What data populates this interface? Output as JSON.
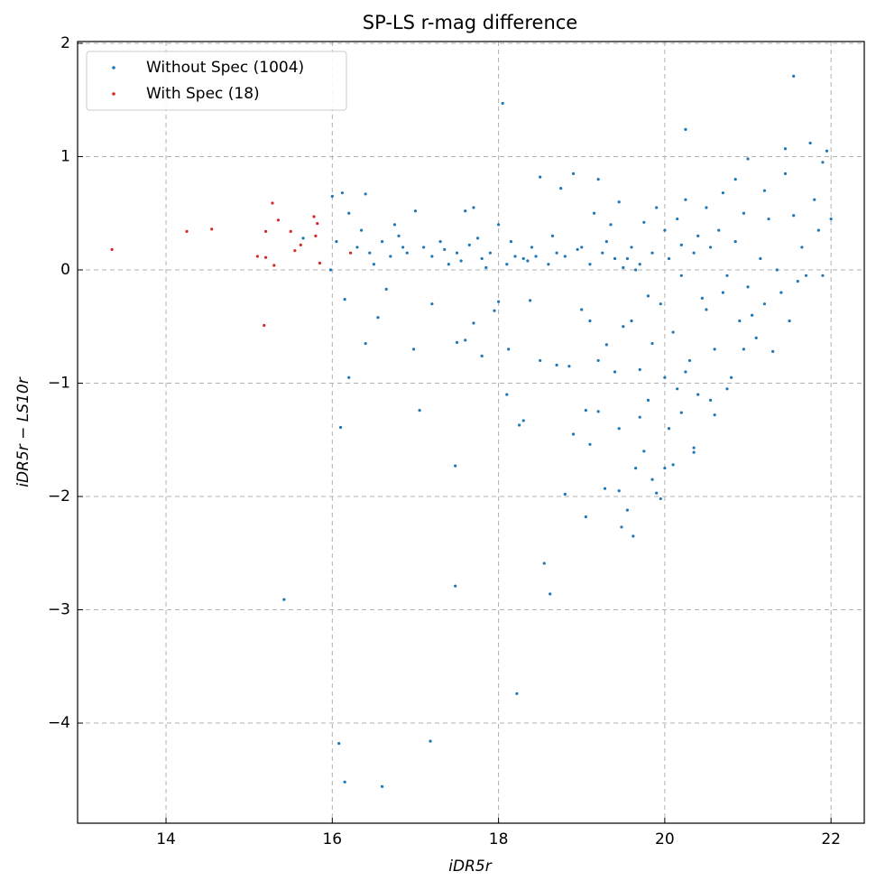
{
  "chart_data": {
    "type": "scatter",
    "title": "SP-LS r-mag difference",
    "x_label": "iDR5r",
    "y_label": "iDR5r − LS10r",
    "xlim": [
      12.936,
      22.4
    ],
    "ylim": [
      -4.884,
      2.016
    ],
    "xticks": [
      14,
      16,
      18,
      20,
      22
    ],
    "yticks": [
      {
        "value": -4,
        "label": "−4"
      },
      {
        "value": -3,
        "label": "−3"
      },
      {
        "value": -2,
        "label": "−2"
      },
      {
        "value": -1,
        "label": "−1"
      },
      0,
      1,
      2
    ],
    "grid": true,
    "legend": "upper left",
    "series": [
      {
        "name": "Without Spec (1004)",
        "color": "#1f77b4",
        "x": [
          18.05,
          20.25,
          21.55,
          15.42,
          16.08,
          16.15,
          16.6,
          17.18,
          18.22,
          17.48,
          18.55,
          18.62,
          17.48,
          16.1,
          17.05,
          18.8,
          19.05,
          19.48,
          19.55,
          19.62,
          19.28,
          19.45,
          19.05,
          18.9,
          19.1,
          19.85,
          19.95,
          19.75,
          20.1,
          19.9,
          19.65,
          20.35,
          20.35,
          20.6,
          20.2,
          20.0,
          18.3,
          18.25,
          18.1,
          16.2,
          16.4,
          16.55,
          16.15,
          16.65,
          16.98,
          17.2,
          17.5,
          17.6,
          17.7,
          17.8,
          17.95,
          18.0,
          18.12,
          18.38,
          18.5,
          18.7,
          18.85,
          19.0,
          19.1,
          19.2,
          19.3,
          19.4,
          19.5,
          19.6,
          19.7,
          19.8,
          19.85,
          19.95,
          20.0,
          20.1,
          20.2,
          20.3,
          20.4,
          20.5,
          20.6,
          20.7,
          20.8,
          20.9,
          21.0,
          21.1,
          21.2,
          21.3,
          21.4,
          21.5,
          21.6,
          21.7,
          21.9,
          22.0,
          21.95,
          21.75,
          21.45,
          21.2,
          21.0,
          20.85,
          20.7,
          20.5,
          20.4,
          20.2,
          20.0,
          19.85,
          19.7,
          19.6,
          19.5,
          19.4,
          19.3,
          19.2,
          19.1,
          19.0,
          18.9,
          18.8,
          18.7,
          18.6,
          18.5,
          18.4,
          18.3,
          18.2,
          18.1,
          18.0,
          17.9,
          17.8,
          17.7,
          17.6,
          17.5,
          17.4,
          17.3,
          17.2,
          17.1,
          17.0,
          16.9,
          16.8,
          16.7,
          16.6,
          16.5,
          16.4,
          16.3,
          16.2,
          16.12,
          16.0,
          16.05,
          15.98,
          15.65,
          16.35,
          16.45,
          16.75,
          16.85,
          17.35,
          17.55,
          17.65,
          17.75,
          17.85,
          18.15,
          18.35,
          18.45,
          18.65,
          18.75,
          18.95,
          19.15,
          19.25,
          19.35,
          19.45,
          19.55,
          19.65,
          19.75,
          19.9,
          20.05,
          20.15,
          20.25,
          20.35,
          20.45,
          20.55,
          20.65,
          20.75,
          20.85,
          20.95,
          21.05,
          21.15,
          21.25,
          21.35,
          21.45,
          21.55,
          21.65,
          21.8,
          21.85,
          21.9,
          19.8,
          20.05,
          20.15,
          20.25,
          20.55,
          20.75,
          20.95,
          19.45,
          19.7,
          19.2
        ],
        "y": [
          1.47,
          1.24,
          1.71,
          -2.91,
          -4.18,
          -4.52,
          -4.56,
          -4.16,
          -3.74,
          -2.79,
          -2.59,
          -2.86,
          -1.73,
          -1.39,
          -1.24,
          -1.98,
          -2.18,
          -2.27,
          -2.12,
          -2.35,
          -1.93,
          -1.95,
          -1.24,
          -1.45,
          -1.54,
          -1.85,
          -2.02,
          -1.6,
          -1.72,
          -1.97,
          -1.75,
          -1.57,
          -1.61,
          -1.28,
          -1.26,
          -1.75,
          -1.33,
          -1.37,
          -1.1,
          -0.95,
          -0.65,
          -0.42,
          -0.26,
          -0.17,
          -0.7,
          -0.3,
          -0.64,
          -0.62,
          -0.47,
          -0.76,
          -0.36,
          -0.28,
          -0.7,
          -0.27,
          -0.8,
          -0.84,
          -0.85,
          -0.35,
          -0.45,
          -0.8,
          -0.66,
          -0.9,
          -0.5,
          -0.45,
          -0.88,
          -0.23,
          -0.65,
          -0.3,
          -0.95,
          -0.55,
          -0.05,
          -0.8,
          -1.1,
          -0.35,
          -0.7,
          -0.2,
          -0.95,
          -0.45,
          -0.15,
          -0.6,
          -0.3,
          -0.72,
          -0.2,
          -0.45,
          -0.1,
          -0.05,
          -0.05,
          0.45,
          1.05,
          1.12,
          1.07,
          0.7,
          0.98,
          0.8,
          0.68,
          0.55,
          0.3,
          0.22,
          0.35,
          0.15,
          0.05,
          0.2,
          0.02,
          0.1,
          0.25,
          0.8,
          0.05,
          0.2,
          0.85,
          0.12,
          0.15,
          0.05,
          0.82,
          0.2,
          0.1,
          0.12,
          0.05,
          0.4,
          0.15,
          0.1,
          0.55,
          0.52,
          0.15,
          0.05,
          0.25,
          0.12,
          0.2,
          0.52,
          0.15,
          0.3,
          0.12,
          0.25,
          0.05,
          0.67,
          0.2,
          0.5,
          0.68,
          0.65,
          0.25,
          0.0,
          0.28,
          0.35,
          0.15,
          0.4,
          0.2,
          0.18,
          0.08,
          0.22,
          0.28,
          0.02,
          0.25,
          0.08,
          0.12,
          0.3,
          0.72,
          0.18,
          0.5,
          0.15,
          0.4,
          0.6,
          0.1,
          0.0,
          0.42,
          0.55,
          0.1,
          0.45,
          0.62,
          0.15,
          -0.25,
          0.2,
          0.35,
          -0.05,
          0.25,
          0.5,
          -0.4,
          0.1,
          0.45,
          0.0,
          0.85,
          0.48,
          0.2,
          0.62,
          0.35,
          0.95,
          -1.15,
          -1.4,
          -1.05,
          -0.9,
          -1.15,
          -1.05,
          -0.7,
          -1.4,
          -1.3,
          -1.25
        ]
      },
      {
        "name": "With Spec (18)",
        "color": "#d62728",
        "x": [
          13.35,
          14.25,
          14.55,
          15.1,
          15.2,
          15.2,
          15.18,
          15.28,
          15.3,
          15.35,
          15.5,
          15.55,
          15.62,
          15.78,
          15.8,
          15.82,
          15.85,
          16.22
        ],
        "y": [
          0.18,
          0.34,
          0.36,
          0.12,
          0.11,
          0.34,
          -0.49,
          0.59,
          0.04,
          0.44,
          0.34,
          0.17,
          0.22,
          0.47,
          0.3,
          0.41,
          0.06,
          0.15
        ]
      }
    ]
  }
}
